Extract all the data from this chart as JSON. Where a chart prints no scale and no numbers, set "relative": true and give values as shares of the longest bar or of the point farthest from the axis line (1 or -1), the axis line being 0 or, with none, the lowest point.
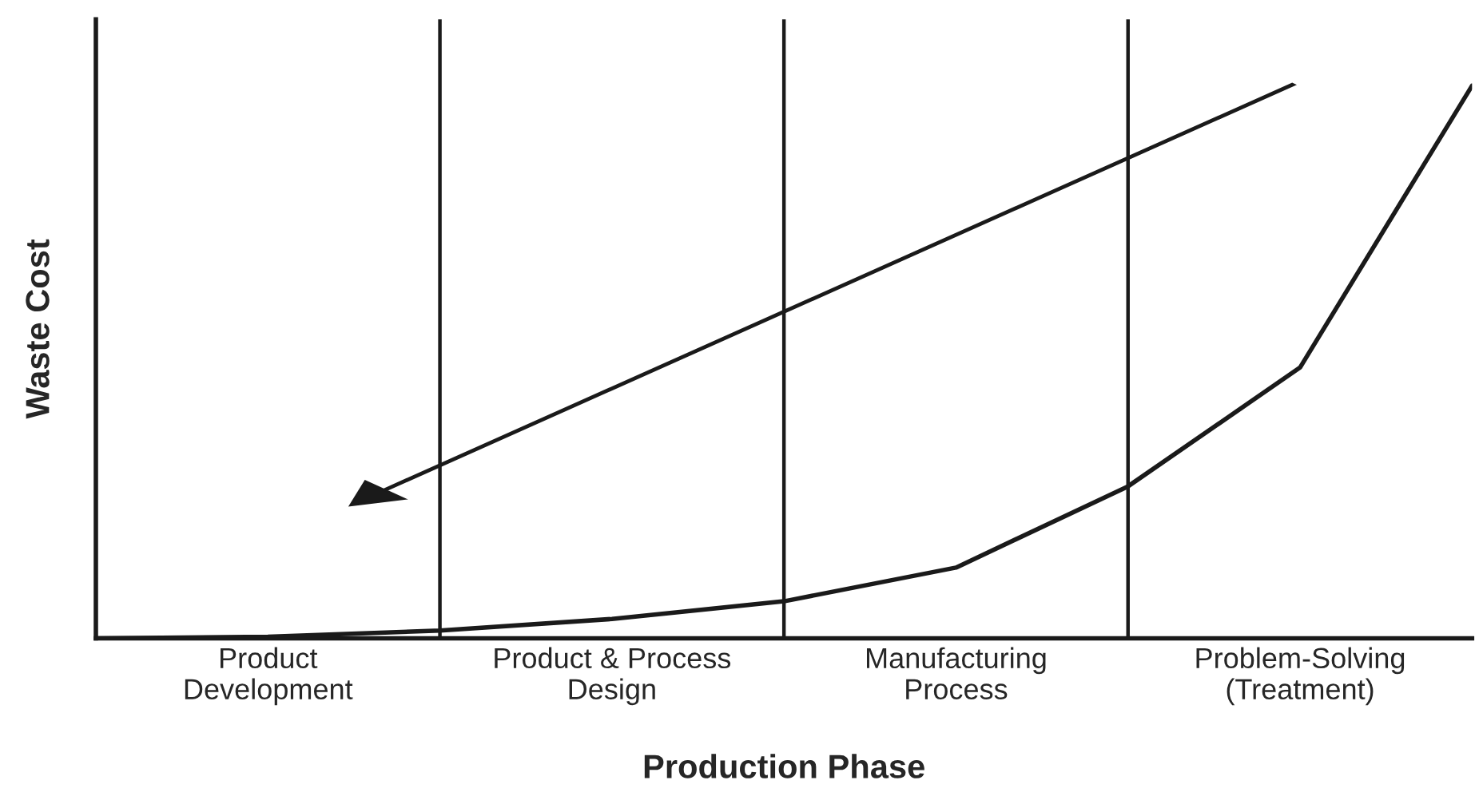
{
  "chart_data": {
    "type": "line",
    "relative": true,
    "xlabel": "Production Phase",
    "ylabel": "Waste Cost",
    "categories": [
      null,
      "Product\nDevelopment",
      null,
      "Product & Process\nDesign",
      null,
      "Manufacturing\nProcess",
      null,
      "Problem-Solving\n(Treatment)",
      null
    ],
    "series": [
      {
        "color": "#1a1a1a",
        "values": [
          0,
          0.003,
          0.014,
          0.035,
          0.067,
          0.128,
          0.275,
          0.49,
          1
        ]
      }
    ],
    "grid": "x",
    "legend": false,
    "marker": "none",
    "line_style": "solid"
  }
}
